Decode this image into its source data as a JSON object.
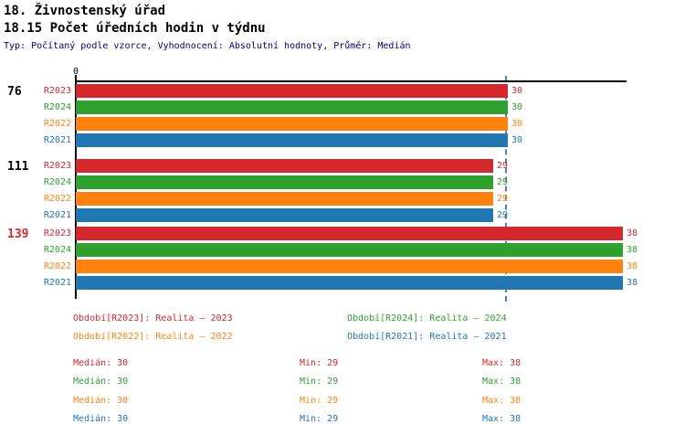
{
  "title": "18. Živnostenský úřad",
  "subtitle": "18.15 Počet úředních hodin v týdnu",
  "meta": "Typ: Počítaný podle vzorce, Vyhodnocení: Absolutní hodnoty, Průměr: Medián",
  "colors": {
    "R2023": "#D4282C",
    "R2024": "#2EA12F",
    "R2022": "#FF810E",
    "R2021": "#2177B4",
    "median_line": "#4682B4",
    "meta_text": "#000080",
    "axis": "#000000",
    "group_label_highlight": "#D4282C"
  },
  "chart_data": {
    "type": "bar",
    "orientation": "horizontal",
    "title": "18.15 Počet úředních hodin v týdnu",
    "xlabel": "",
    "ylabel": "",
    "xlim": [
      0,
      38.5
    ],
    "x_origin_label": "0",
    "grid": false,
    "median_line_value": 30,
    "series_order": [
      "R2023",
      "R2024",
      "R2022",
      "R2021"
    ],
    "groups": [
      {
        "label": "76",
        "label_color": "#000000",
        "values": {
          "R2023": 30,
          "R2024": 30,
          "R2022": 30,
          "R2021": 30
        }
      },
      {
        "label": "111",
        "label_color": "#000000",
        "values": {
          "R2023": 29,
          "R2024": 29,
          "R2022": 29,
          "R2021": 29
        }
      },
      {
        "label": "139",
        "label_color": "#D4282C",
        "values": {
          "R2023": 38,
          "R2024": 38,
          "R2022": 38,
          "R2021": 38
        }
      }
    ]
  },
  "legend": [
    {
      "series": "R2023",
      "label": "Období[R2023]: Realita – 2023",
      "col": 0,
      "row": 0
    },
    {
      "series": "R2024",
      "label": "Období[R2024]: Realita – 2024",
      "col": 1,
      "row": 0
    },
    {
      "series": "R2022",
      "label": "Období[R2022]: Realita – 2022",
      "col": 0,
      "row": 1
    },
    {
      "series": "R2021",
      "label": "Období[R2021]: Realita – 2021",
      "col": 1,
      "row": 1
    }
  ],
  "stats": [
    {
      "series": "R2023",
      "median": "Medián: 30",
      "min": "Min: 29",
      "max": "Max: 38"
    },
    {
      "series": "R2024",
      "median": "Medián: 30",
      "min": "Min: 29",
      "max": "Max: 38"
    },
    {
      "series": "R2022",
      "median": "Medián: 30",
      "min": "Min: 29",
      "max": "Max: 38"
    },
    {
      "series": "R2021",
      "median": "Medián: 30",
      "min": "Min: 29",
      "max": "Max: 38"
    }
  ]
}
